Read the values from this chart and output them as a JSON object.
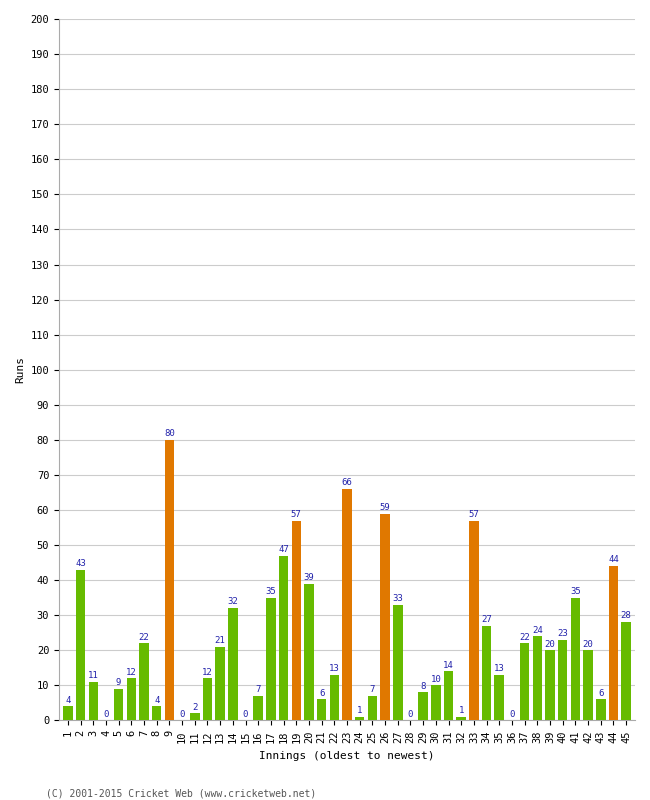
{
  "innings": [
    1,
    2,
    3,
    4,
    5,
    6,
    7,
    8,
    9,
    10,
    11,
    12,
    13,
    14,
    15,
    16,
    17,
    18,
    19,
    20,
    21,
    22,
    23,
    24,
    25,
    26,
    27,
    28,
    29,
    30,
    31,
    32,
    33,
    34,
    35,
    36,
    37,
    38,
    39,
    40,
    41,
    42,
    43,
    44,
    45
  ],
  "values": [
    4,
    43,
    11,
    0,
    9,
    12,
    22,
    4,
    80,
    0,
    2,
    12,
    21,
    32,
    0,
    7,
    35,
    47,
    57,
    39,
    6,
    13,
    66,
    1,
    7,
    59,
    33,
    0,
    8,
    10,
    14,
    1,
    57,
    27,
    13,
    0,
    22,
    24,
    20,
    23,
    35,
    20,
    6,
    44,
    28
  ],
  "colors": [
    "#66bb00",
    "#66bb00",
    "#66bb00",
    "#66bb00",
    "#66bb00",
    "#66bb00",
    "#66bb00",
    "#66bb00",
    "#e07800",
    "#66bb00",
    "#66bb00",
    "#66bb00",
    "#66bb00",
    "#66bb00",
    "#66bb00",
    "#66bb00",
    "#66bb00",
    "#66bb00",
    "#e07800",
    "#66bb00",
    "#66bb00",
    "#66bb00",
    "#e07800",
    "#66bb00",
    "#66bb00",
    "#e07800",
    "#66bb00",
    "#66bb00",
    "#66bb00",
    "#66bb00",
    "#66bb00",
    "#66bb00",
    "#e07800",
    "#66bb00",
    "#66bb00",
    "#66bb00",
    "#66bb00",
    "#66bb00",
    "#66bb00",
    "#66bb00",
    "#66bb00",
    "#66bb00",
    "#66bb00",
    "#e07800",
    "#66bb00"
  ],
  "xlabel": "Innings (oldest to newest)",
  "ylabel": "Runs",
  "ylim": [
    0,
    200
  ],
  "yticks": [
    0,
    10,
    20,
    30,
    40,
    50,
    60,
    70,
    80,
    90,
    100,
    110,
    120,
    130,
    140,
    150,
    160,
    170,
    180,
    190,
    200
  ],
  "bg_color": "#ffffff",
  "grid_color": "#cccccc",
  "label_color": "#2222aa",
  "label_fontsize": 6.5,
  "axis_label_fontsize": 8,
  "tick_fontsize": 7.5,
  "footer": "(C) 2001-2015 Cricket Web (www.cricketweb.net)"
}
